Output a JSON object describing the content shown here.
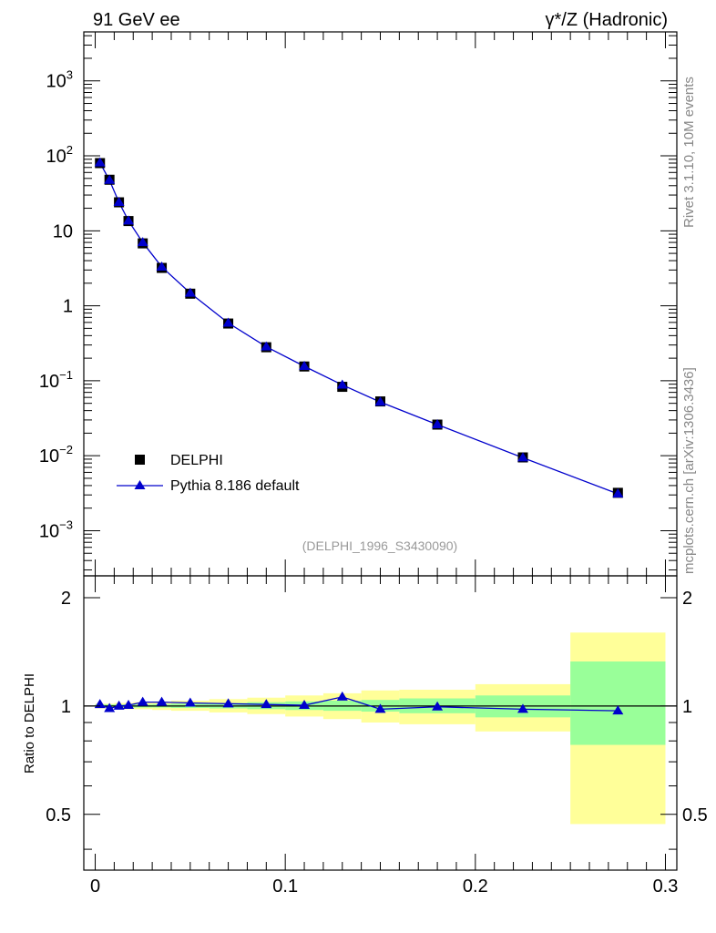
{
  "header": {
    "left_title": "91 GeV ee",
    "right_title": "γ*/Z (Hadronic)"
  },
  "side": {
    "rivet_label": "Rivet 3.1.10,  10M events",
    "mcplots_label": "mcplots.cern.ch [arXiv:1306.3436]"
  },
  "chart_data": [
    {
      "type": "line",
      "panel": "main",
      "yscale": "log",
      "xlim": [
        -0.006,
        0.306
      ],
      "ylim": [
        0.00025,
        4500
      ],
      "yticks": [
        {
          "value": 0.001,
          "base": "10",
          "exp": "−3"
        },
        {
          "value": 0.01,
          "base": "10",
          "exp": "−2"
        },
        {
          "value": 0.1,
          "base": "10",
          "exp": "−1"
        },
        {
          "value": 1,
          "base": "1",
          "exp": ""
        },
        {
          "value": 10,
          "base": "10",
          "exp": ""
        },
        {
          "value": 100,
          "base": "10",
          "exp": "2"
        },
        {
          "value": 1000,
          "base": "10",
          "exp": "3"
        }
      ],
      "watermark": "(DELPHI_1996_S3430090)",
      "legend": {
        "position": "middle-left",
        "data_label": "DELPHI",
        "mc_label": "Pythia 8.186 default"
      },
      "x": [
        0.0025,
        0.0075,
        0.0125,
        0.0175,
        0.025,
        0.035,
        0.05,
        0.07,
        0.09,
        0.11,
        0.13,
        0.15,
        0.18,
        0.225,
        0.275
      ],
      "series": [
        {
          "name": "DELPHI",
          "marker": "square",
          "color": "#000000",
          "values": [
            80,
            48,
            24,
            13.5,
            6.8,
            3.2,
            1.45,
            0.58,
            0.28,
            0.155,
            0.083,
            0.053,
            0.026,
            0.0095,
            0.0032
          ]
        },
        {
          "name": "Pythia 8.186 default",
          "marker": "triangle",
          "color": "#0000cc",
          "values": [
            80.8,
            47.3,
            24.0,
            13.6,
            7.0,
            3.3,
            1.48,
            0.59,
            0.284,
            0.156,
            0.088,
            0.052,
            0.026,
            0.0094,
            0.0031
          ]
        }
      ]
    },
    {
      "type": "line",
      "panel": "ratio",
      "ylabel": "Ratio to DELPHI",
      "xlim": [
        -0.006,
        0.306
      ],
      "ylim": [
        0.35,
        2.3
      ],
      "yticks": [
        0.5,
        1,
        2
      ],
      "xticks": [
        0,
        0.1,
        0.2,
        0.3
      ],
      "xtick_labels": [
        "0",
        "0.1",
        "0.2",
        "0.3"
      ],
      "ytick_labels": [
        "0.5",
        "1",
        "2"
      ],
      "reference_line": 1,
      "x": [
        0.0025,
        0.0075,
        0.0125,
        0.0175,
        0.025,
        0.035,
        0.05,
        0.07,
        0.09,
        0.11,
        0.13,
        0.15,
        0.18,
        0.225,
        0.275
      ],
      "series": [
        {
          "name": "Pythia 8.186 default",
          "marker": "triangle",
          "color": "#0000cc",
          "values": [
            1.01,
            0.985,
            1.0,
            1.005,
            1.025,
            1.025,
            1.02,
            1.015,
            1.01,
            1.005,
            1.06,
            0.98,
            0.995,
            0.98,
            0.97
          ]
        }
      ],
      "bands": [
        {
          "x0": 0.0,
          "x1": 0.005,
          "outer": [
            0.985,
            1.015
          ],
          "inner": [
            0.99,
            1.01
          ]
        },
        {
          "x0": 0.005,
          "x1": 0.01,
          "outer": [
            0.985,
            1.015
          ],
          "inner": [
            0.99,
            1.01
          ]
        },
        {
          "x0": 0.01,
          "x1": 0.015,
          "outer": [
            0.98,
            1.02
          ],
          "inner": [
            0.99,
            1.01
          ]
        },
        {
          "x0": 0.015,
          "x1": 0.02,
          "outer": [
            0.98,
            1.02
          ],
          "inner": [
            0.99,
            1.01
          ]
        },
        {
          "x0": 0.02,
          "x1": 0.03,
          "outer": [
            0.98,
            1.025
          ],
          "inner": [
            0.99,
            1.01
          ]
        },
        {
          "x0": 0.03,
          "x1": 0.04,
          "outer": [
            0.975,
            1.03
          ],
          "inner": [
            0.99,
            1.012
          ]
        },
        {
          "x0": 0.04,
          "x1": 0.06,
          "outer": [
            0.97,
            1.035
          ],
          "inner": [
            0.988,
            1.015
          ]
        },
        {
          "x0": 0.06,
          "x1": 0.08,
          "outer": [
            0.96,
            1.045
          ],
          "inner": [
            0.985,
            1.02
          ]
        },
        {
          "x0": 0.08,
          "x1": 0.1,
          "outer": [
            0.95,
            1.055
          ],
          "inner": [
            0.98,
            1.025
          ]
        },
        {
          "x0": 0.1,
          "x1": 0.12,
          "outer": [
            0.935,
            1.07
          ],
          "inner": [
            0.975,
            1.03
          ]
        },
        {
          "x0": 0.12,
          "x1": 0.14,
          "outer": [
            0.92,
            1.085
          ],
          "inner": [
            0.97,
            1.035
          ]
        },
        {
          "x0": 0.14,
          "x1": 0.16,
          "outer": [
            0.9,
            1.105
          ],
          "inner": [
            0.965,
            1.04
          ]
        },
        {
          "x0": 0.16,
          "x1": 0.2,
          "outer": [
            0.89,
            1.11
          ],
          "inner": [
            0.955,
            1.05
          ]
        },
        {
          "x0": 0.2,
          "x1": 0.25,
          "outer": [
            0.85,
            1.15
          ],
          "inner": [
            0.93,
            1.07
          ]
        },
        {
          "x0": 0.25,
          "x1": 0.3,
          "outer": [
            0.47,
            1.6
          ],
          "inner": [
            0.78,
            1.33
          ]
        }
      ],
      "band_colors": {
        "outer": "#ffff99",
        "inner": "#99ff99"
      }
    }
  ]
}
